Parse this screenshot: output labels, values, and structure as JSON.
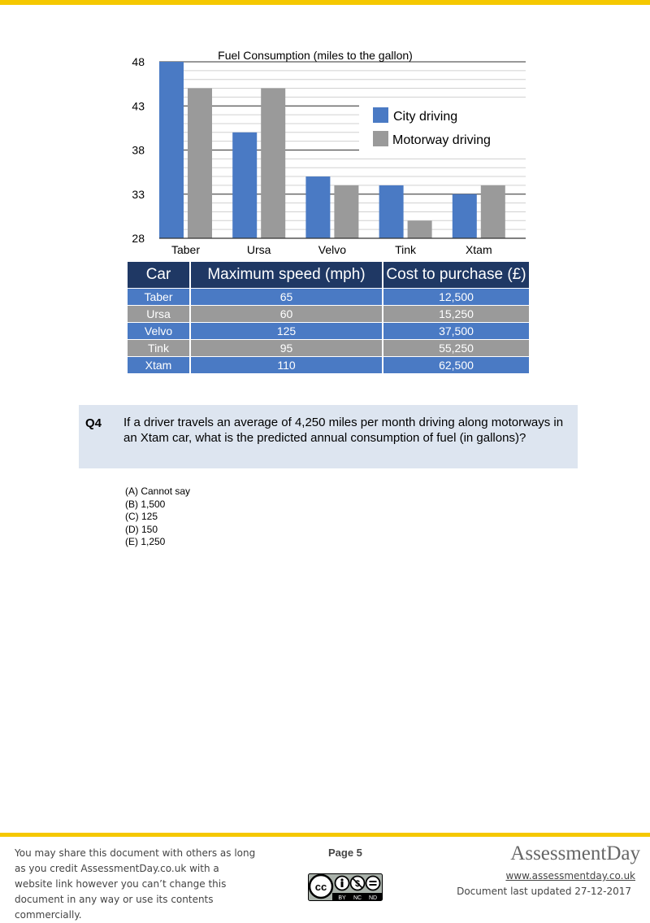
{
  "chart_data": {
    "type": "bar",
    "title": "Fuel Consumption (miles to the gallon)",
    "categories": [
      "Taber",
      "Ursa",
      "Velvo",
      "Tink",
      "Xtam"
    ],
    "series": [
      {
        "name": "City driving",
        "color": "#4a7ac4",
        "values": [
          48,
          40,
          35,
          34,
          33
        ]
      },
      {
        "name": "Motorway driving",
        "color": "#9a9a9a",
        "values": [
          45,
          45,
          34,
          30,
          34
        ]
      }
    ],
    "ylim": [
      28,
      48
    ],
    "yticks": [
      "48",
      "43",
      "38",
      "33",
      "28"
    ],
    "grid": true,
    "legend": "top-right"
  },
  "table": {
    "headers": [
      "Car",
      "Maximum speed (mph)",
      "Cost to purchase (£)"
    ],
    "rows": [
      [
        "Taber",
        "65",
        "12,500"
      ],
      [
        "Ursa",
        "60",
        "15,250"
      ],
      [
        "Velvo",
        "125",
        "37,500"
      ],
      [
        "Tink",
        "95",
        "55,250"
      ],
      [
        "Xtam",
        "110",
        "62,500"
      ]
    ]
  },
  "question": {
    "number": "Q4",
    "text": "If a driver travels an average of 4,250 miles per month driving along motorways in an Xtam car, what is the predicted annual consumption of fuel (in gallons)?",
    "options": [
      "(A) Cannot say",
      "(B) 1,500",
      "(C) 125",
      "(D) 150",
      "(E) 1,250"
    ]
  },
  "footer": {
    "notice": "You may share this document with others as long as you credit AssessmentDay.co.uk with a website link however you can’t change this document in any way or use its contents commercially.",
    "page": "Page 5",
    "brand": "AssessmentDay",
    "website": "www.assessmentday.co.uk",
    "updated": "Document last updated 27-12-2017",
    "license_labels": [
      "BY",
      "NC",
      "ND"
    ],
    "license_icon": "cc-by-nc-nd-icon",
    "accent_color": "#f5c800"
  }
}
